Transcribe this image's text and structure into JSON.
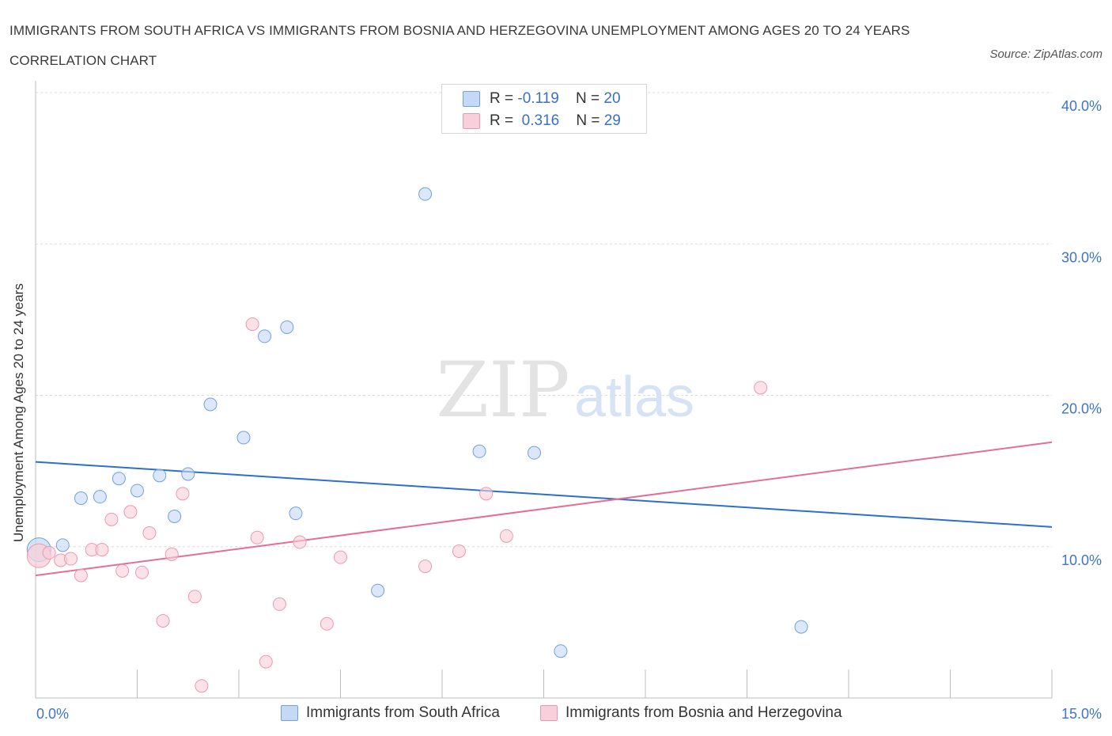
{
  "header": {
    "title": "IMMIGRANTS FROM SOUTH AFRICA VS IMMIGRANTS FROM BOSNIA AND HERZEGOVINA UNEMPLOYMENT AMONG AGES 20 TO 24 YEARS CORRELATION CHART",
    "source": "Source: ZipAtlas.com"
  },
  "watermark": {
    "zip": "ZIP",
    "atlas": "atlas"
  },
  "legend": {
    "rows": [
      {
        "r_label": "R =",
        "r_value": "-0.119",
        "n_label": "N =",
        "n_value": "20",
        "color": "#a9c8f2"
      },
      {
        "r_label": "R =",
        "r_value": "0.316",
        "n_label": "N =",
        "n_value": "29",
        "color": "#f5b8c9"
      }
    ]
  },
  "chart_data": {
    "type": "scatter",
    "ylabel": "Unemployment Among Ages 20 to 24 years",
    "xlabel": "",
    "xlim": [
      0,
      15
    ],
    "ylim": [
      0,
      40
    ],
    "x_tick_labels": [
      "0.0%",
      "15.0%"
    ],
    "y_tick_labels": [
      "10.0%",
      "20.0%",
      "30.0%",
      "40.0%"
    ],
    "y_ticks": [
      10,
      20,
      30,
      40
    ],
    "grid": true,
    "series": [
      {
        "name": "Immigrants from South Africa",
        "color": "#6fa0e0",
        "fill": "#c4d9f5",
        "line_color": "#2e6fcc",
        "trend": {
          "x": [
            0,
            15
          ],
          "y": [
            15.6,
            11.3
          ]
        },
        "points": [
          {
            "x": 0.05,
            "y": 9.8
          },
          {
            "x": 0.4,
            "y": 10.1
          },
          {
            "x": 0.67,
            "y": 13.2
          },
          {
            "x": 0.95,
            "y": 13.3
          },
          {
            "x": 1.23,
            "y": 14.5
          },
          {
            "x": 1.5,
            "y": 13.7
          },
          {
            "x": 1.83,
            "y": 14.7
          },
          {
            "x": 2.05,
            "y": 12.0
          },
          {
            "x": 2.25,
            "y": 14.8
          },
          {
            "x": 2.58,
            "y": 19.4
          },
          {
            "x": 3.07,
            "y": 17.2
          },
          {
            "x": 3.38,
            "y": 23.9
          },
          {
            "x": 3.71,
            "y": 24.5
          },
          {
            "x": 3.84,
            "y": 12.2
          },
          {
            "x": 5.05,
            "y": 7.1
          },
          {
            "x": 5.75,
            "y": 33.3
          },
          {
            "x": 6.55,
            "y": 16.3
          },
          {
            "x": 7.36,
            "y": 16.2
          },
          {
            "x": 7.75,
            "y": 3.1
          },
          {
            "x": 11.3,
            "y": 4.7
          }
        ]
      },
      {
        "name": "Immigrants from Bosnia and Herzegovina",
        "color": "#ee97b0",
        "fill": "#f8cfdb",
        "line_color": "#e46e98",
        "trend": {
          "x": [
            0,
            15
          ],
          "y": [
            8.1,
            16.9
          ]
        },
        "points": [
          {
            "x": 0.05,
            "y": 9.4
          },
          {
            "x": 0.2,
            "y": 9.6
          },
          {
            "x": 0.37,
            "y": 9.1
          },
          {
            "x": 0.52,
            "y": 9.2
          },
          {
            "x": 0.67,
            "y": 8.1
          },
          {
            "x": 0.83,
            "y": 9.8
          },
          {
            "x": 0.98,
            "y": 9.8
          },
          {
            "x": 1.12,
            "y": 11.8
          },
          {
            "x": 1.28,
            "y": 8.4
          },
          {
            "x": 1.4,
            "y": 12.3
          },
          {
            "x": 1.57,
            "y": 8.3
          },
          {
            "x": 1.68,
            "y": 10.9
          },
          {
            "x": 1.88,
            "y": 5.1
          },
          {
            "x": 2.01,
            "y": 9.5
          },
          {
            "x": 2.17,
            "y": 13.5
          },
          {
            "x": 2.35,
            "y": 6.7
          },
          {
            "x": 2.45,
            "y": 0.8
          },
          {
            "x": 3.2,
            "y": 24.7
          },
          {
            "x": 3.27,
            "y": 10.6
          },
          {
            "x": 3.4,
            "y": 2.4
          },
          {
            "x": 3.6,
            "y": 6.2
          },
          {
            "x": 3.9,
            "y": 10.3
          },
          {
            "x": 4.3,
            "y": 4.9
          },
          {
            "x": 4.5,
            "y": 9.3
          },
          {
            "x": 5.75,
            "y": 8.7
          },
          {
            "x": 6.25,
            "y": 9.7
          },
          {
            "x": 6.65,
            "y": 13.5
          },
          {
            "x": 6.95,
            "y": 10.7
          },
          {
            "x": 10.7,
            "y": 20.5
          }
        ]
      }
    ]
  }
}
